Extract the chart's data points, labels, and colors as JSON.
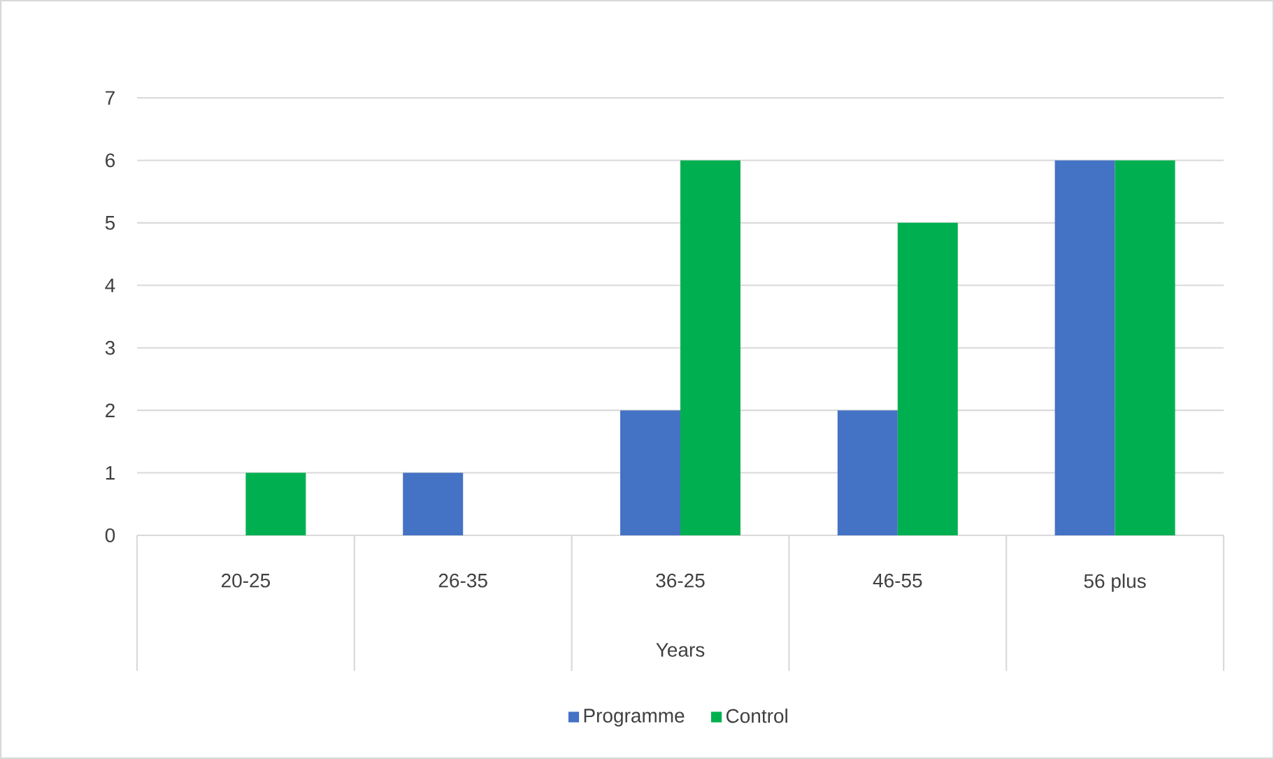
{
  "chart_data": {
    "type": "bar",
    "xlabel": "Years",
    "categories": [
      "20-25",
      "26-35",
      "36-25",
      "46-55",
      "56 plus"
    ],
    "series": [
      {
        "name": "Programme",
        "color": "#4472c4",
        "values": [
          0,
          1,
          2,
          2,
          6
        ]
      },
      {
        "name": "Control",
        "color": "#00b050",
        "values": [
          1,
          0,
          6,
          5,
          6
        ]
      }
    ],
    "ylim": [
      0,
      7
    ],
    "yticks": [
      0,
      1,
      2,
      3,
      4,
      5,
      6,
      7
    ],
    "grid": "y",
    "legend": "bottom"
  }
}
